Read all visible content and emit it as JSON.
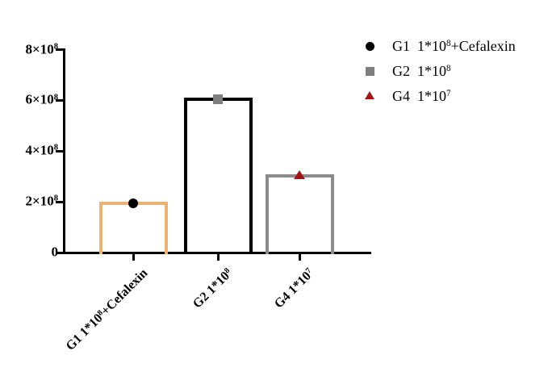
{
  "chart_data": {
    "type": "bar",
    "categories": [
      "G1 1*10^8+Cefalexin",
      "G2 1*10^8",
      "G4 1*10^7"
    ],
    "categories_parts": [
      {
        "pre": "G1 1*10",
        "sup": "8",
        "post": "+Cefalexin"
      },
      {
        "pre": "G2 1*10",
        "sup": "8",
        "post": ""
      },
      {
        "pre": "G4 1*10",
        "sup": "7",
        "post": ""
      }
    ],
    "values": [
      200000000,
      610000000,
      310000000
    ],
    "ylim": [
      0,
      800000000
    ],
    "yticks": [
      {
        "value": 0,
        "pre": "0",
        "sup": ""
      },
      {
        "value": 200000000,
        "pre": "2×10",
        "sup": "8"
      },
      {
        "value": 400000000,
        "pre": "4×10",
        "sup": "8"
      },
      {
        "value": 600000000,
        "pre": "6×10",
        "sup": "8"
      },
      {
        "value": 800000000,
        "pre": "8×10",
        "sup": "8"
      }
    ],
    "grid": false,
    "bar_styles": [
      {
        "stroke": "#EAB277",
        "marker": "circle",
        "marker_color": "#000000"
      },
      {
        "stroke": "#000000",
        "marker": "square",
        "marker_color": "#7F7F7F"
      },
      {
        "stroke": "#8B8B8B",
        "marker": "triangle",
        "marker_color": "#A31414"
      }
    ],
    "legend": {
      "position": "top-right",
      "entries": [
        {
          "marker": "circle",
          "color": "#000000",
          "pre": "G1  1*10",
          "sup": "8",
          "post": "+Cefalexin"
        },
        {
          "marker": "square",
          "color": "#7F7F7F",
          "pre": "G2  1*10",
          "sup": "8",
          "post": ""
        },
        {
          "marker": "triangle",
          "color": "#A31414",
          "pre": "G4  1*10",
          "sup": "7",
          "post": ""
        }
      ]
    }
  }
}
